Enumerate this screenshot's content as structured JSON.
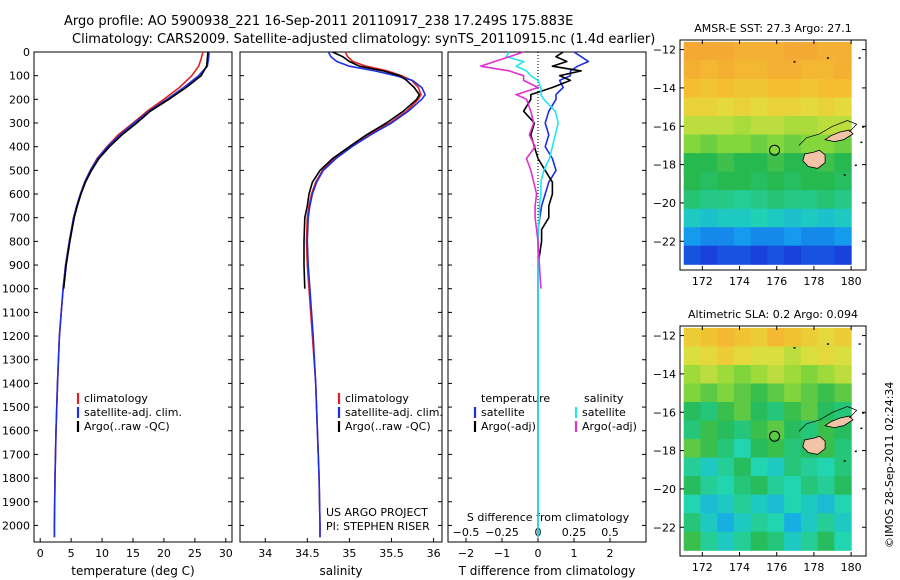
{
  "header": {
    "line1": "Argo profile: AO 5900938_221 16-Sep-2011 20110917_238 17.249S 175.883E",
    "line2": "Climatology: CARS2009. Satellite-adjusted climatology: synTS_20110915.nc (1.4d earlier)"
  },
  "side_stamp": "©IMOS 28-Sep-2011 02:24:34",
  "colors": {
    "climatology": "#e02020",
    "satellite": "#1f2fe0",
    "argo": "#000000",
    "sal_satellite": "#22e5ee",
    "sal_argo": "#e030d0"
  },
  "chart_data": [
    {
      "type": "line",
      "name": "temperature-profile",
      "xlabel": "temperature (deg C)",
      "ylabel": "",
      "xlim": [
        -1,
        31
      ],
      "ylim": [
        2070,
        0
      ],
      "xticks": [
        0,
        5,
        10,
        15,
        20,
        25,
        30
      ],
      "yticks": [
        0,
        100,
        200,
        300,
        400,
        500,
        600,
        700,
        800,
        900,
        1000,
        1100,
        1200,
        1300,
        1400,
        1500,
        1600,
        1700,
        1800,
        1900,
        2000
      ],
      "depth": [
        0,
        30,
        60,
        100,
        150,
        200,
        250,
        300,
        350,
        400,
        450,
        500,
        550,
        600,
        650,
        700,
        800,
        900,
        1000,
        1200,
        1400,
        1600,
        1800,
        2000,
        2050
      ],
      "series": [
        {
          "name": "climatology",
          "color_key": "climatology",
          "values": [
            26.3,
            26.0,
            25.6,
            24.5,
            22.5,
            20.0,
            17.3,
            15.0,
            12.6,
            10.8,
            9.2,
            8.1,
            7.2,
            6.5,
            5.9,
            5.4,
            4.7,
            4.1,
            3.7,
            3.1,
            2.8,
            2.55,
            2.4,
            2.3,
            2.3
          ]
        },
        {
          "name": "satellite-adj. clim.",
          "color_key": "satellite",
          "values": [
            27.3,
            27.2,
            27.0,
            25.6,
            23.2,
            20.5,
            17.6,
            15.2,
            12.9,
            10.9,
            9.3,
            8.1,
            7.2,
            6.5,
            5.9,
            5.4,
            4.7,
            4.1,
            3.7,
            3.1,
            2.8,
            2.55,
            2.4,
            2.3,
            2.3
          ]
        },
        {
          "name": "Argo(..raw -QC)",
          "color_key": "argo",
          "values": [
            27.1,
            27.0,
            26.9,
            26.0,
            23.6,
            20.8,
            17.8,
            15.6,
            13.2,
            11.2,
            9.5,
            8.3,
            7.3,
            6.6,
            6.0,
            5.5,
            4.8,
            4.2,
            3.8,
            null,
            null,
            null,
            null,
            null,
            null
          ]
        }
      ],
      "legend": [
        "climatology",
        "satellite-adj. clim.",
        "Argo(..raw -QC)"
      ]
    },
    {
      "type": "line",
      "name": "salinity-profile",
      "xlabel": "salinity",
      "xlim": [
        33.7,
        36.1
      ],
      "ylim": [
        2070,
        0
      ],
      "xticks": [
        34,
        34.5,
        35,
        35.5,
        36
      ],
      "xticklabels": [
        "34",
        "34.5",
        "35",
        "35.5",
        "36"
      ],
      "depth": [
        0,
        20,
        40,
        60,
        80,
        100,
        120,
        150,
        180,
        200,
        250,
        300,
        350,
        400,
        450,
        500,
        550,
        600,
        650,
        700,
        800,
        900,
        1000,
        1200,
        1400,
        1600,
        1800,
        2000,
        2050
      ],
      "series": [
        {
          "name": "climatology",
          "color_key": "climatology",
          "values": [
            34.95,
            34.98,
            35.04,
            35.2,
            35.45,
            35.62,
            35.74,
            35.82,
            35.85,
            35.82,
            35.68,
            35.48,
            35.22,
            35.02,
            34.82,
            34.68,
            34.6,
            34.55,
            34.52,
            34.5,
            34.49,
            34.5,
            34.52,
            34.56,
            34.6,
            34.62,
            34.64,
            34.65,
            34.65
          ]
        },
        {
          "name": "satellite-adj. clim.",
          "color_key": "satellite",
          "values": [
            34.75,
            34.78,
            34.85,
            35.0,
            35.3,
            35.55,
            35.75,
            35.86,
            35.9,
            35.86,
            35.7,
            35.5,
            35.25,
            35.03,
            34.84,
            34.69,
            34.61,
            34.56,
            34.53,
            34.51,
            34.5,
            34.51,
            34.53,
            34.57,
            34.6,
            34.62,
            34.64,
            34.65,
            34.65
          ]
        },
        {
          "name": "Argo(..raw -QC)",
          "color_key": "argo",
          "values": [
            34.8,
            34.92,
            35.0,
            35.12,
            35.4,
            35.6,
            35.68,
            35.77,
            35.83,
            35.8,
            35.64,
            35.44,
            35.2,
            35.0,
            34.8,
            34.65,
            34.56,
            34.52,
            34.5,
            34.47,
            34.46,
            34.46,
            34.47,
            null,
            null,
            null,
            null,
            null,
            null
          ]
        }
      ],
      "legend": [
        "climatology",
        "satellite-adj. clim.",
        "Argo(..raw -QC)"
      ],
      "annotation": [
        "US ARGO PROJECT",
        "PI: STEPHEN RISER"
      ]
    },
    {
      "type": "line",
      "name": "difference-profile",
      "xlabel": "T difference from climatology",
      "xlabel_top": "S difference from climatology",
      "xlim": [
        -2.5,
        3
      ],
      "ylim": [
        2070,
        0
      ],
      "xticks": [
        -2,
        -1,
        0,
        1,
        2
      ],
      "xticklabels": [
        "−2",
        "−1",
        "0",
        "1",
        "2"
      ],
      "sticks": [
        -0.5,
        -0.25,
        0,
        0.25,
        0.5
      ],
      "sticklabels": [
        "−0.5",
        "−0.25",
        "0",
        "0.25",
        "0.5"
      ],
      "depth": [
        0,
        20,
        40,
        60,
        80,
        100,
        120,
        150,
        180,
        200,
        250,
        300,
        350,
        400,
        450,
        500,
        550,
        600,
        650,
        700,
        750,
        800,
        900,
        1000,
        1100,
        1200,
        1400,
        1600,
        1800,
        2000,
        2050
      ],
      "series": [
        {
          "name": "temperature satellite",
          "color_key": "satellite",
          "units": "degC",
          "values": [
            1.0,
            1.2,
            1.4,
            1.1,
            0.9,
            0.9,
            0.6,
            0.7,
            0.5,
            0.5,
            0.3,
            0.2,
            0.3,
            0.2,
            0.4,
            0.5,
            0.3,
            0.2,
            0.1,
            0.05,
            0.0,
            0.0,
            0.0,
            0.0,
            0.0,
            0.0,
            0.0,
            0.0,
            0.0,
            0.0,
            0.0
          ]
        },
        {
          "name": "temperature Argo(-adj)",
          "color_key": "argo",
          "units": "degC",
          "values": [
            0.7,
            0.5,
            0.8,
            0.4,
            1.2,
            0.6,
            0.9,
            0.4,
            -0.2,
            -0.2,
            -0.4,
            -0.1,
            -0.2,
            -0.1,
            0.0,
            0.2,
            0.4,
            0.4,
            0.3,
            0.3,
            0.1,
            0.1,
            0.0,
            null,
            null,
            null,
            null,
            null,
            null,
            null,
            null
          ]
        },
        {
          "name": "salinity satellite",
          "color_key": "sal_satellite",
          "units": "psu",
          "values": [
            -0.2,
            -0.22,
            -0.1,
            -0.15,
            -0.08,
            -0.05,
            0.0,
            0.02,
            0.02,
            0.04,
            0.12,
            0.14,
            0.12,
            0.1,
            0.08,
            0.04,
            0.02,
            0.02,
            0.01,
            0.01,
            0.0,
            0.0,
            0.0,
            0.0,
            0.0,
            0.0,
            0.0,
            0.0,
            0.0,
            0.0,
            0.0
          ]
        },
        {
          "name": "salinity Argo(-adj)",
          "color_key": "sal_argo",
          "units": "psu",
          "values": [
            -0.1,
            -0.2,
            -0.3,
            -0.4,
            -0.2,
            -0.1,
            -0.1,
            0.0,
            -0.15,
            -0.08,
            -0.05,
            -0.03,
            -0.06,
            -0.02,
            -0.08,
            -0.05,
            -0.03,
            -0.01,
            -0.02,
            -0.02,
            -0.01,
            0.0,
            0.01,
            0.02,
            null,
            null,
            null,
            null,
            null,
            null,
            null
          ]
        }
      ],
      "legend_titles": [
        "temperature",
        "salinity"
      ],
      "legend": [
        "satellite",
        "Argo(-adj)",
        "satellite",
        "Argo(-adj)"
      ]
    },
    {
      "type": "heatmap",
      "name": "sst-map",
      "title": "AMSR-E SST: 27.3 Argo: 27.1",
      "xlim": [
        170.8,
        180.8
      ],
      "ylim": [
        -23.5,
        -11.5
      ],
      "xticks": [
        172,
        174,
        176,
        178,
        180
      ],
      "yticks": [
        -12,
        -14,
        -16,
        -18,
        -20,
        -22
      ],
      "xticklabels": [
        "172",
        "174",
        "176",
        "178",
        "180"
      ],
      "yticklabels": [
        "−12",
        "−14",
        "−16",
        "−18",
        "−20",
        "−22"
      ],
      "marker": {
        "lon": 175.883,
        "lat": -17.249
      },
      "grid_rows": [
        [
          27.9,
          27.9,
          27.9,
          27.8,
          27.8,
          27.8,
          27.9,
          27.9,
          27.8,
          27.8
        ],
        [
          27.8,
          27.7,
          27.8,
          27.7,
          27.7,
          27.8,
          27.8,
          27.7,
          27.7,
          27.8
        ],
        [
          27.6,
          27.5,
          27.6,
          27.5,
          27.5,
          27.6,
          27.6,
          27.5,
          27.6,
          27.6
        ],
        [
          27.3,
          27.3,
          27.2,
          27.3,
          27.2,
          27.3,
          27.3,
          27.2,
          27.3,
          27.2
        ],
        [
          26.9,
          26.9,
          26.9,
          26.8,
          26.9,
          26.9,
          26.8,
          26.8,
          26.9,
          26.9
        ],
        [
          26.6,
          26.5,
          26.6,
          26.6,
          26.5,
          26.6,
          26.5,
          26.6,
          26.6,
          26.5
        ],
        [
          26.2,
          26.2,
          26.3,
          26.2,
          26.2,
          26.3,
          26.2,
          26.2,
          26.3,
          26.2
        ],
        [
          26.2,
          26.1,
          26.2,
          26.2,
          26.1,
          26.2,
          26.1,
          26.2,
          26.2,
          26.1
        ],
        [
          26.0,
          25.9,
          25.9,
          25.8,
          25.9,
          26.0,
          25.9,
          25.9,
          26.0,
          25.9
        ],
        [
          25.5,
          25.4,
          25.5,
          25.5,
          25.6,
          25.5,
          25.4,
          25.5,
          25.4,
          25.5
        ],
        [
          25.0,
          24.9,
          24.9,
          25.0,
          24.9,
          24.9,
          25.0,
          24.9,
          24.9,
          25.0
        ],
        [
          24.6,
          24.5,
          24.6,
          24.6,
          24.5,
          24.6,
          24.5,
          24.6,
          24.6,
          24.5
        ]
      ]
    },
    {
      "type": "heatmap",
      "name": "sla-map",
      "title": "Altimetric SLA: 0.2 Argo: 0.094",
      "xlim": [
        170.8,
        180.8
      ],
      "ylim": [
        -23.5,
        -11.5
      ],
      "xticks": [
        172,
        174,
        176,
        178,
        180
      ],
      "yticks": [
        -12,
        -14,
        -16,
        -18,
        -20,
        -22
      ],
      "xticklabels": [
        "172",
        "174",
        "176",
        "178",
        "180"
      ],
      "yticklabels": [
        "−12",
        "−14",
        "−16",
        "−18",
        "−20",
        "−22"
      ],
      "marker": {
        "lon": 175.883,
        "lat": -17.249
      },
      "grid_rows": [
        [
          0.24,
          0.25,
          0.26,
          0.25,
          0.24,
          0.26,
          0.25,
          0.24,
          0.23,
          0.24
        ],
        [
          0.22,
          0.23,
          0.24,
          0.23,
          0.22,
          0.22,
          0.21,
          0.22,
          0.23,
          0.22
        ],
        [
          0.2,
          0.21,
          0.2,
          0.19,
          0.2,
          0.21,
          0.2,
          0.19,
          0.2,
          0.21
        ],
        [
          0.19,
          0.18,
          0.19,
          0.18,
          0.17,
          0.18,
          0.19,
          0.18,
          0.17,
          0.18
        ],
        [
          0.16,
          0.15,
          0.17,
          0.18,
          0.16,
          0.15,
          0.17,
          0.18,
          0.16,
          0.15
        ],
        [
          0.15,
          0.17,
          0.16,
          0.15,
          0.17,
          0.18,
          0.16,
          0.15,
          0.17,
          0.16
        ],
        [
          0.18,
          0.17,
          0.15,
          0.13,
          0.16,
          0.17,
          0.15,
          0.16,
          0.17,
          0.15
        ],
        [
          0.14,
          0.12,
          0.14,
          0.16,
          0.13,
          0.12,
          0.15,
          0.14,
          0.13,
          0.15
        ],
        [
          0.16,
          0.14,
          0.13,
          0.15,
          0.16,
          0.14,
          0.13,
          0.15,
          0.14,
          0.16
        ],
        [
          0.13,
          0.11,
          0.12,
          0.14,
          0.12,
          0.11,
          0.13,
          0.12,
          0.11,
          0.13
        ],
        [
          0.15,
          0.12,
          0.1,
          0.12,
          0.14,
          0.13,
          0.1,
          0.12,
          0.14,
          0.12
        ],
        [
          0.17,
          0.14,
          0.12,
          0.14,
          0.16,
          0.15,
          0.12,
          0.14,
          0.16,
          0.13
        ]
      ]
    }
  ]
}
